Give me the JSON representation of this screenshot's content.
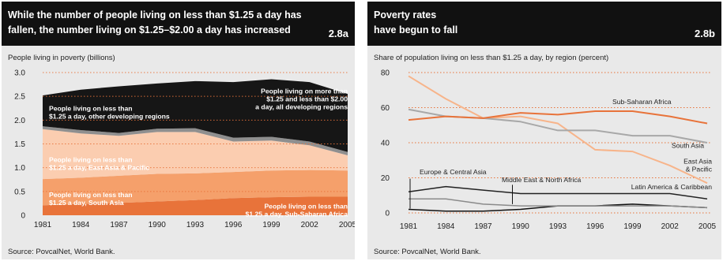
{
  "panels": [
    {
      "title_line1": "While the number of people living on less than $1.25 a day has",
      "title_line2": "fallen, the number living on $1.25–$2.00 a day has increased",
      "badge": "2.8a",
      "source": "Source: PovcalNet, World Bank."
    },
    {
      "title_line1": "Poverty rates",
      "title_line2": "have begun to fall",
      "badge": "2.8b",
      "source": "Source: PovcalNet, World Bank."
    }
  ],
  "chart_data": [
    {
      "type": "area",
      "stacked": true,
      "ylabel": "People living in poverty (billions)",
      "x": [
        "1981",
        "1984",
        "1987",
        "1990",
        "1993",
        "1996",
        "1999",
        "2002",
        "2005"
      ],
      "ylim": [
        0,
        3.0
      ],
      "yticks": [
        "0",
        "0.5",
        "1.0",
        "1.5",
        "2.0",
        "2.5",
        "3.0"
      ],
      "grid": true,
      "series": [
        {
          "name": "People living on less than $1.25 a day, Sub-Saharan Africa",
          "label_lines": [
            "People living on less than",
            "$1.25 a day, Sub-Saharan Africa"
          ],
          "color": "#e8733a",
          "values": [
            0.21,
            0.24,
            0.26,
            0.29,
            0.32,
            0.36,
            0.38,
            0.39,
            0.39
          ]
        },
        {
          "name": "People living on less than $1.25 a day, South Asia",
          "label_lines": [
            "People living on less than",
            "$1.25 a day, South Asia"
          ],
          "color": "#f5a06b",
          "values": [
            0.55,
            0.55,
            0.57,
            0.58,
            0.56,
            0.55,
            0.56,
            0.56,
            0.55
          ]
        },
        {
          "name": "People living on less than $1.25 a day, East Asia & Pacific",
          "label_lines": [
            "People living on less than",
            "$1.25 a day, East Asia & Pacific"
          ],
          "color": "#fbcdb0",
          "values": [
            1.05,
            0.93,
            0.84,
            0.88,
            0.87,
            0.64,
            0.63,
            0.52,
            0.32
          ]
        },
        {
          "name": "People living on less than $1.25 a day, other developing regions",
          "label_lines": [
            "People living on less than",
            "$1.25 a day, other developing regions"
          ],
          "color": "#8f8f8f",
          "values": [
            0.06,
            0.07,
            0.06,
            0.07,
            0.08,
            0.08,
            0.08,
            0.08,
            0.07
          ]
        },
        {
          "name": "People living on more than $1.25 and less than $2.00 a day, all developing regions",
          "label_lines": [
            "People living on more than",
            "$1.25 and less than $2.00",
            "a day, all developing regions"
          ],
          "color": "#161616",
          "values": [
            0.65,
            0.85,
            0.98,
            0.95,
            0.99,
            1.17,
            1.21,
            1.25,
            1.22
          ]
        }
      ]
    },
    {
      "type": "line",
      "ylabel": "Share of population living on less than $1.25 a day, by region (percent)",
      "x": [
        "1981",
        "1984",
        "1987",
        "1990",
        "1993",
        "1996",
        "1999",
        "2002",
        "2005"
      ],
      "ylim": [
        0,
        80
      ],
      "yticks": [
        "0",
        "20",
        "40",
        "60",
        "80"
      ],
      "grid": true,
      "series": [
        {
          "name": "Sub-Saharan Africa",
          "color": "#e8733a",
          "width": 2,
          "values": [
            53,
            55,
            54,
            57,
            56,
            58,
            58,
            55,
            51
          ]
        },
        {
          "name": "South Asia",
          "color": "#a8a8a8",
          "width": 2,
          "values": [
            59,
            55,
            54,
            52,
            47,
            47,
            44,
            44,
            40
          ]
        },
        {
          "name": "East Asia & Pacific",
          "color": "#f7b48a",
          "width": 2,
          "values": [
            78,
            65,
            54,
            55,
            51,
            36,
            35,
            27,
            17
          ]
        },
        {
          "name": "Latin America & Caribbean",
          "color": "#222222",
          "width": 1.5,
          "values": [
            12,
            15,
            13,
            11,
            11,
            11,
            11,
            11,
            8
          ]
        },
        {
          "name": "Middle East & North Africa",
          "color": "#8a8a8a",
          "width": 1.5,
          "values": [
            8,
            8,
            5,
            4,
            4,
            4,
            4,
            4,
            3
          ]
        },
        {
          "name": "Europe & Central Asia",
          "color": "#111111",
          "width": 1.5,
          "values": [
            2,
            1,
            1,
            2,
            4,
            4,
            5,
            4,
            3
          ]
        }
      ]
    }
  ]
}
